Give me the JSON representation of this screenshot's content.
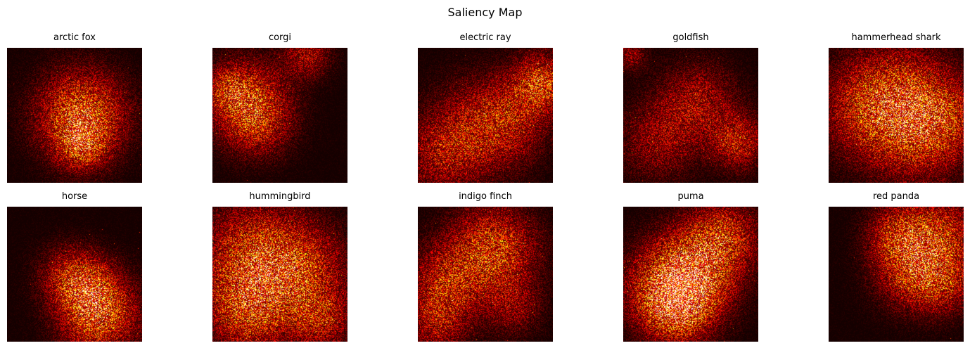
{
  "figure": {
    "title": "Saliency Map",
    "colormap": "hot",
    "background": "#0b0000"
  },
  "panels": [
    {
      "label": "arctic fox"
    },
    {
      "label": "corgi"
    },
    {
      "label": "electric ray"
    },
    {
      "label": "goldfish"
    },
    {
      "label": "hammerhead shark"
    },
    {
      "label": "horse"
    },
    {
      "label": "hummingbird"
    },
    {
      "label": "indigo finch"
    },
    {
      "label": "puma"
    },
    {
      "label": "red panda"
    }
  ]
}
